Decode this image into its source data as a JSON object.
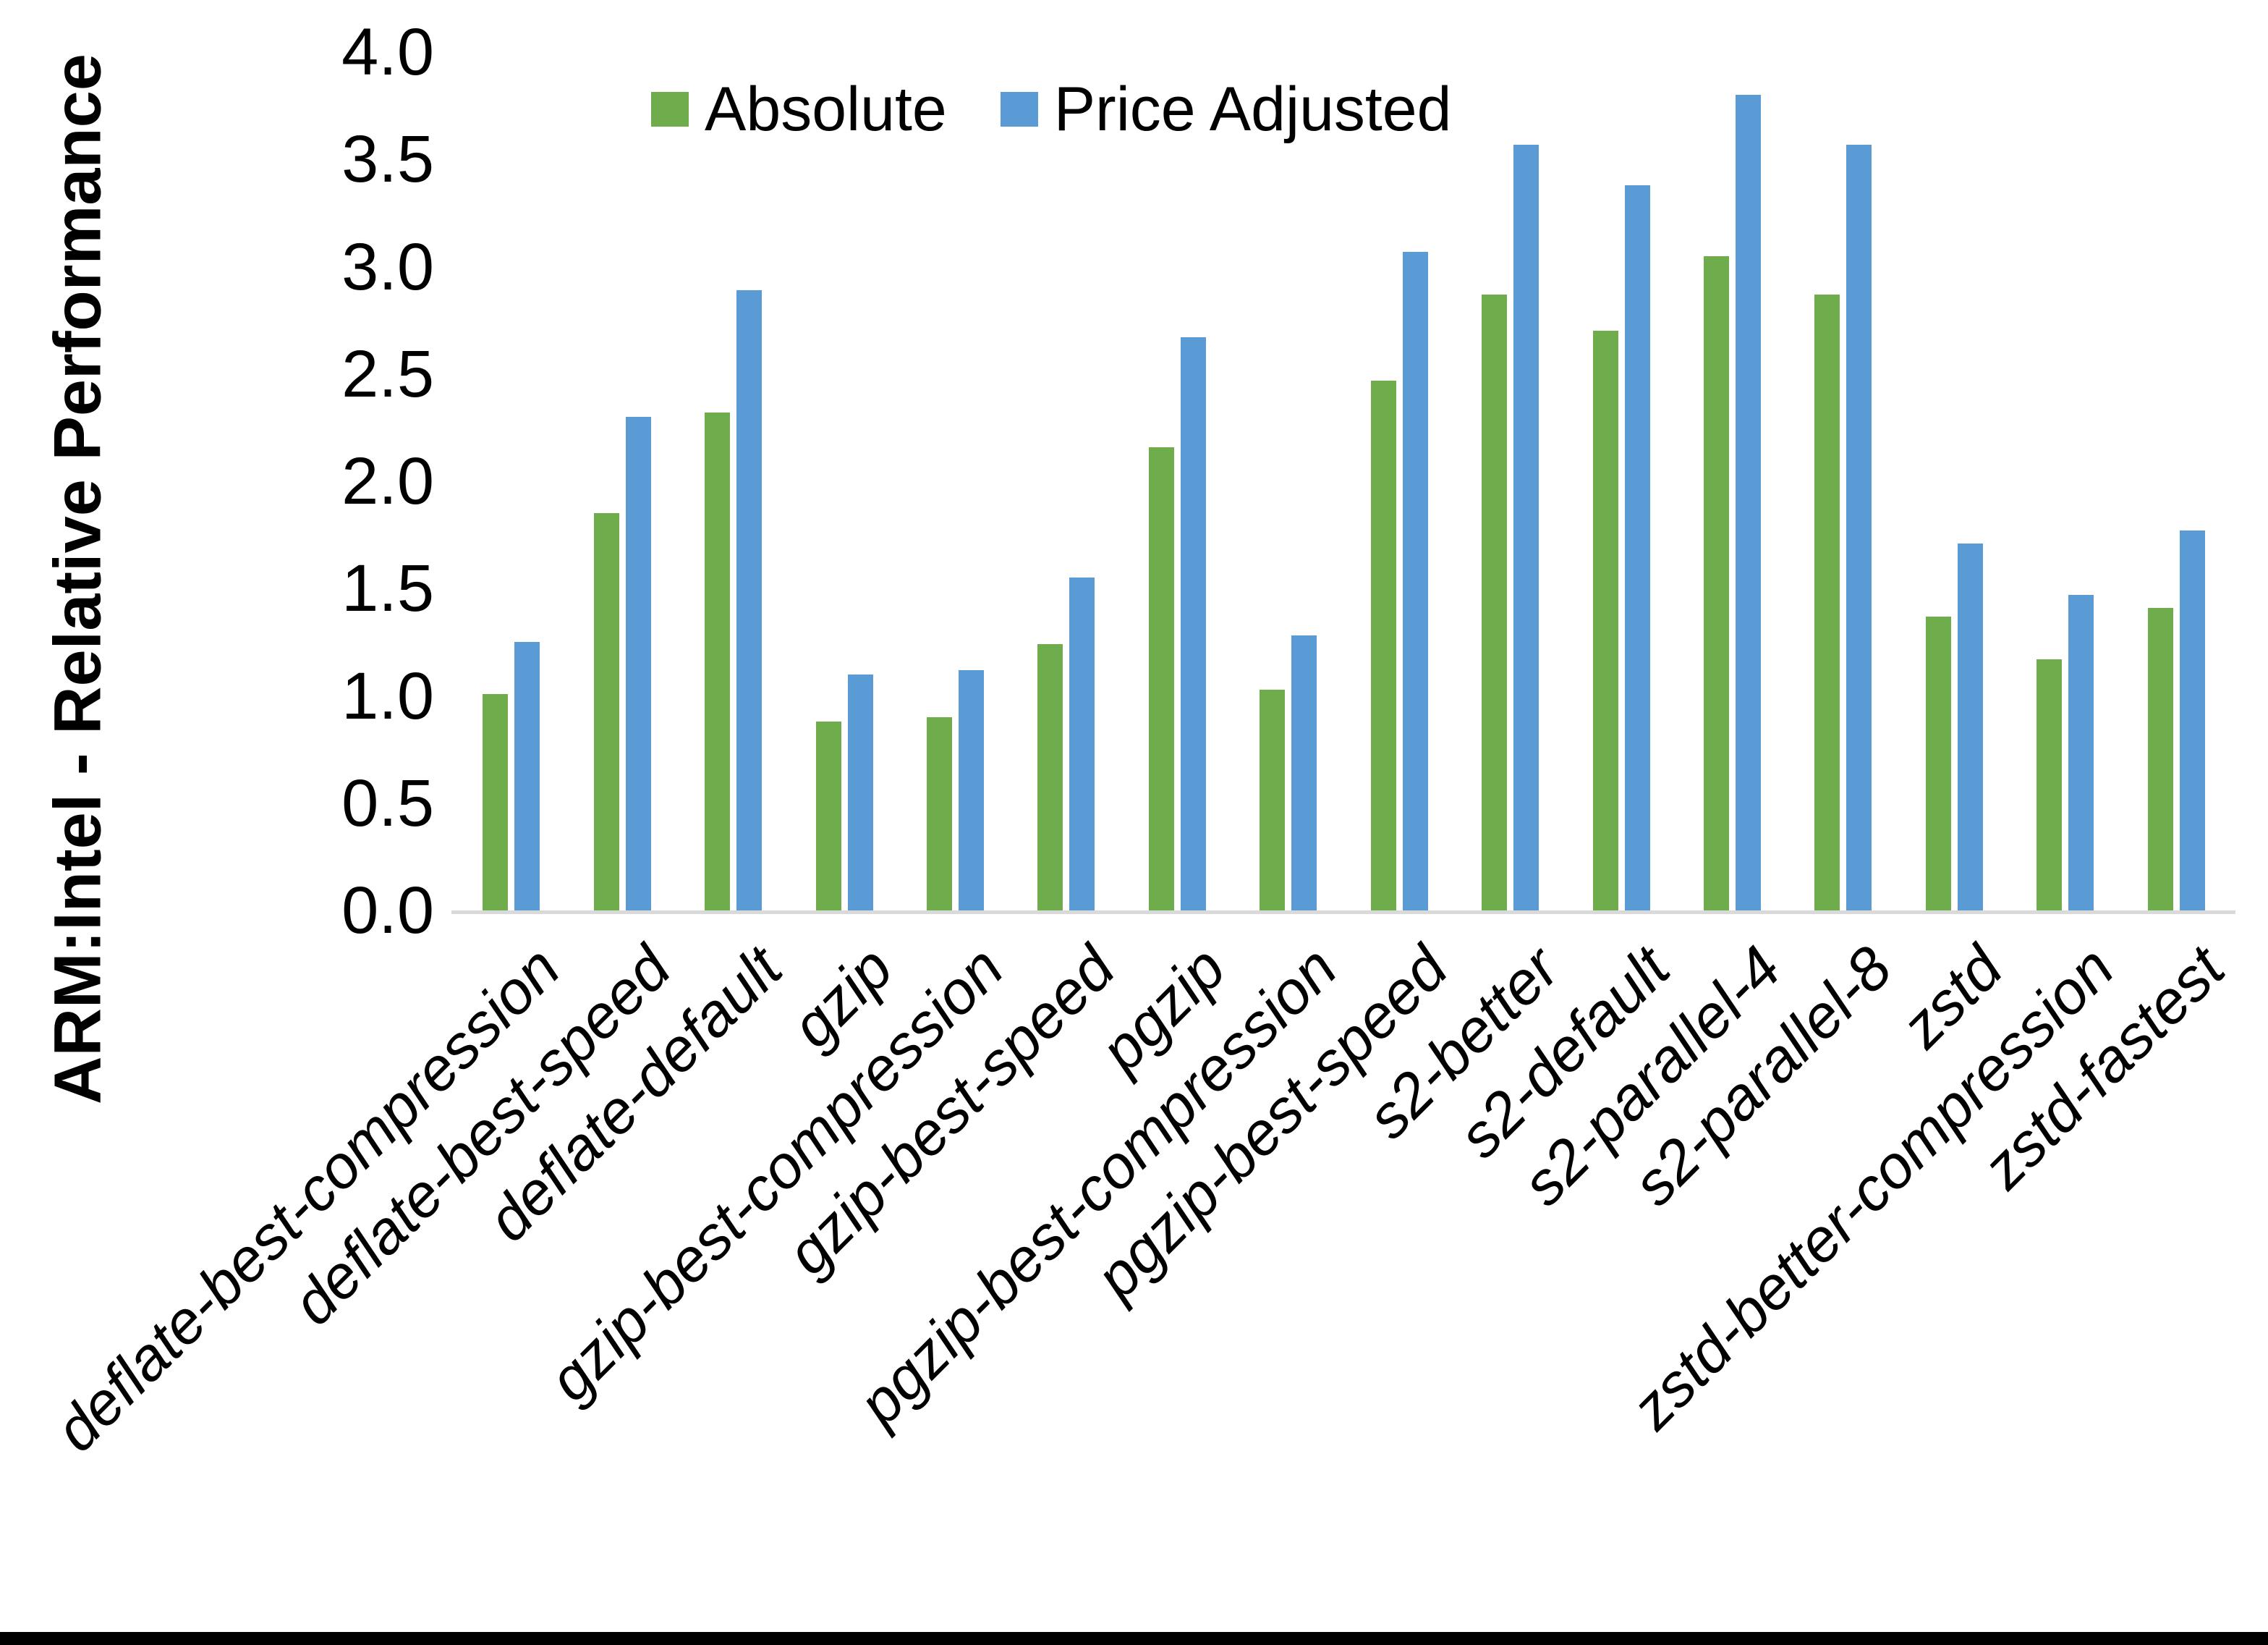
{
  "colors": {
    "absolute_series": "#6FAC4B",
    "price_adjusted_series": "#5B9BD5",
    "axis_line": "#D9D9D9",
    "text": "#000000",
    "background": "#FFFFFF",
    "bottom_border": "#000000"
  },
  "chart_data": {
    "type": "bar",
    "title": "",
    "xlabel": "",
    "ylabel": "ARM:Intel - Relative Performance",
    "ylim": [
      0.0,
      4.0
    ],
    "ytick_step": 0.5,
    "ytick_labels": [
      "4.0",
      "3.5",
      "3.0",
      "2.5",
      "2.0",
      "1.5",
      "1.0",
      "0.5",
      "0.0"
    ],
    "grid": false,
    "legend_position": "top-center",
    "categories": [
      "deflate-best-compression",
      "deflate-best-speed",
      "deflate-default",
      "gzip",
      "gzip-best-compression",
      "gzip-best-speed",
      "pgzip",
      "pgzip-best-compression",
      "pgzip-best-speed",
      "s2-better",
      "s2-default",
      "s2-parallel-4",
      "s2-parallel-8",
      "zstd",
      "zstd-better-compression",
      "zstd-fastest"
    ],
    "series": [
      {
        "name": "Absolute",
        "color": "#6FAC4B",
        "values": [
          1.01,
          1.85,
          2.32,
          0.88,
          0.9,
          1.24,
          2.16,
          1.03,
          2.47,
          2.87,
          2.7,
          3.05,
          2.87,
          1.37,
          1.17,
          1.41
        ]
      },
      {
        "name": "Price Adjusted",
        "color": "#5B9BD5",
        "values": [
          1.25,
          2.3,
          2.89,
          1.1,
          1.12,
          1.55,
          2.67,
          1.28,
          3.07,
          3.57,
          3.38,
          3.8,
          3.57,
          1.71,
          1.47,
          1.77
        ]
      }
    ]
  }
}
